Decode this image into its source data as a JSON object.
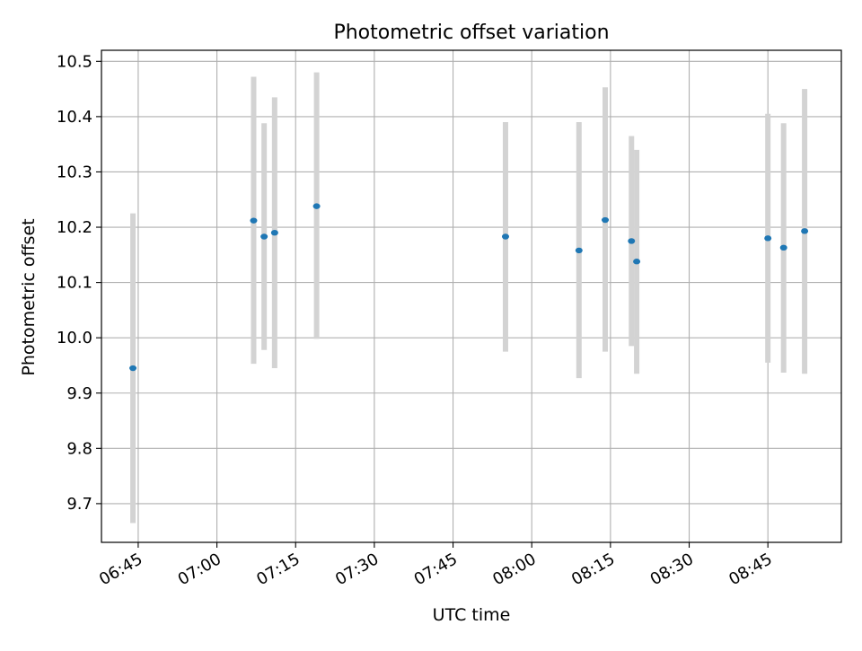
{
  "chart_data": {
    "type": "scatter",
    "title": "Photometric offset variation",
    "xlabel": "UTC time",
    "ylabel": "Photometric offset",
    "x_unit": "UTC time (HH:MM)",
    "xlim": [
      "06:38",
      "08:59"
    ],
    "ylim": [
      9.63,
      10.52
    ],
    "grid": true,
    "x_ticks": [
      "06:45",
      "07:00",
      "07:15",
      "07:30",
      "07:45",
      "08:00",
      "08:15",
      "08:30",
      "08:45"
    ],
    "y_ticks": [
      "9.7",
      "9.8",
      "9.9",
      "10.0",
      "10.1",
      "10.2",
      "10.3",
      "10.4",
      "10.5"
    ],
    "points": [
      {
        "x": "06:44",
        "y": 9.945,
        "ylow": 9.665,
        "yhigh": 10.225
      },
      {
        "x": "07:07",
        "y": 10.212,
        "ylow": 9.953,
        "yhigh": 10.472
      },
      {
        "x": "07:09",
        "y": 10.183,
        "ylow": 9.978,
        "yhigh": 10.388
      },
      {
        "x": "07:11",
        "y": 10.19,
        "ylow": 9.945,
        "yhigh": 10.435
      },
      {
        "x": "07:19",
        "y": 10.238,
        "ylow": 9.998,
        "yhigh": 10.48
      },
      {
        "x": "07:55",
        "y": 10.183,
        "ylow": 9.975,
        "yhigh": 10.39
      },
      {
        "x": "08:09",
        "y": 10.158,
        "ylow": 9.927,
        "yhigh": 10.39
      },
      {
        "x": "08:14",
        "y": 10.213,
        "ylow": 9.975,
        "yhigh": 10.453
      },
      {
        "x": "08:19",
        "y": 10.175,
        "ylow": 9.985,
        "yhigh": 10.365
      },
      {
        "x": "08:20",
        "y": 10.138,
        "ylow": 9.935,
        "yhigh": 10.34
      },
      {
        "x": "08:45",
        "y": 10.18,
        "ylow": 9.955,
        "yhigh": 10.405
      },
      {
        "x": "08:48",
        "y": 10.163,
        "ylow": 9.937,
        "yhigh": 10.388
      },
      {
        "x": "08:52",
        "y": 10.193,
        "ylow": 9.935,
        "yhigh": 10.45
      }
    ],
    "colors": {
      "point": "#1f77b4",
      "errorbar": "#d3d3d3",
      "grid": "#b0b0b0",
      "axes": "#000000"
    }
  }
}
